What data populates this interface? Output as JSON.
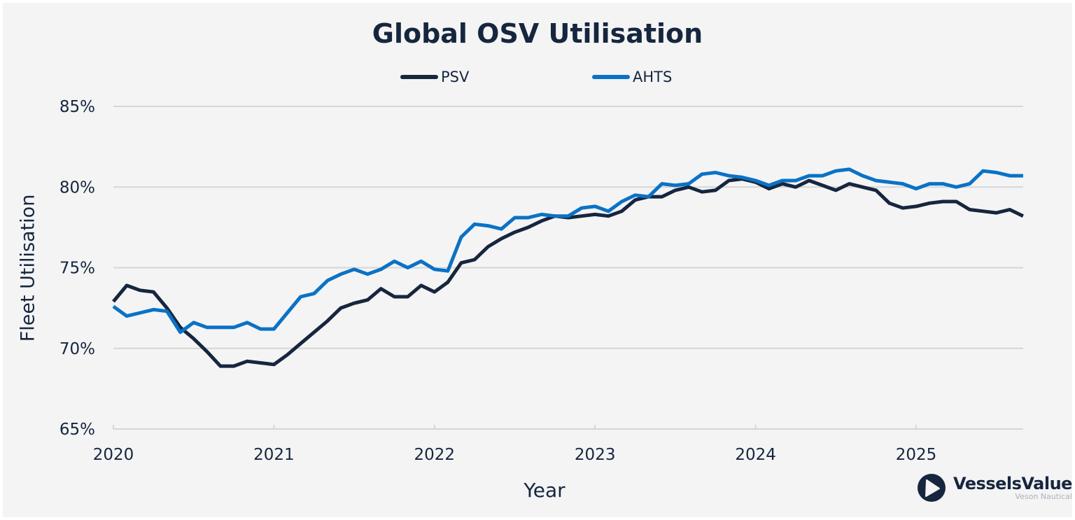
{
  "chart_data": {
    "type": "line",
    "title": "Global OSV Utilisation",
    "xlabel": "Year",
    "ylabel": "Fleet Utilisation",
    "ylim": [
      65,
      85
    ],
    "yticks": [
      65,
      70,
      75,
      80,
      85
    ],
    "ytick_labels": [
      "65%",
      "70%",
      "75%",
      "80%",
      "85%"
    ],
    "xticks": [
      2020,
      2021,
      2022,
      2023,
      2024,
      2025
    ],
    "xtick_labels": [
      "2020",
      "2021",
      "2022",
      "2023",
      "2024",
      "2025"
    ],
    "x_start": "2020-01",
    "x_end": "2025-09",
    "x_frequency": "monthly",
    "grid": "horizontal",
    "legend_position": "top-center",
    "series": [
      {
        "name": "PSV",
        "color": "#16263f",
        "values": [
          72.9,
          73.9,
          73.6,
          73.5,
          72.5,
          71.3,
          70.6,
          69.8,
          68.9,
          68.9,
          69.2,
          69.1,
          69.0,
          69.6,
          70.3,
          71.0,
          71.7,
          72.5,
          72.8,
          73.0,
          73.7,
          73.2,
          73.2,
          73.9,
          73.5,
          74.1,
          75.3,
          75.5,
          76.3,
          76.8,
          77.2,
          77.5,
          77.9,
          78.2,
          78.1,
          78.2,
          78.3,
          78.2,
          78.5,
          79.2,
          79.4,
          79.4,
          79.8,
          80.0,
          79.7,
          79.8,
          80.4,
          80.5,
          80.3,
          79.9,
          80.2,
          80.0,
          80.4,
          80.1,
          79.8,
          80.2,
          80.0,
          79.8,
          79.0,
          78.7,
          78.8,
          79.0,
          79.1,
          79.1,
          78.6,
          78.5,
          78.4,
          78.6,
          78.2
        ]
      },
      {
        "name": "AHTS",
        "color": "#0a72c6",
        "values": [
          72.6,
          72.0,
          72.2,
          72.4,
          72.3,
          71.0,
          71.6,
          71.3,
          71.3,
          71.3,
          71.6,
          71.2,
          71.2,
          72.2,
          73.2,
          73.4,
          74.2,
          74.6,
          74.9,
          74.6,
          74.9,
          75.4,
          75.0,
          75.4,
          74.9,
          74.8,
          76.9,
          77.7,
          77.6,
          77.4,
          78.1,
          78.1,
          78.3,
          78.2,
          78.2,
          78.7,
          78.8,
          78.5,
          79.1,
          79.5,
          79.4,
          80.2,
          80.1,
          80.2,
          80.8,
          80.9,
          80.7,
          80.6,
          80.4,
          80.1,
          80.4,
          80.4,
          80.7,
          80.7,
          81.0,
          81.1,
          80.7,
          80.4,
          80.3,
          80.2,
          79.9,
          80.2,
          80.2,
          80.0,
          80.2,
          81.0,
          80.9,
          80.7,
          80.7
        ]
      }
    ]
  },
  "branding": {
    "logo_icon": "play-triangle-in-circle-icon",
    "name": "VesselsValue",
    "subtitle": "Veson Nautical"
  }
}
